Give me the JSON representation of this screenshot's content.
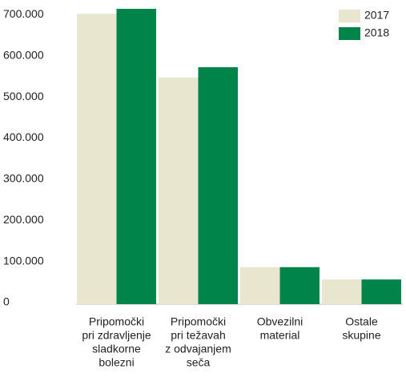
{
  "chart_data": {
    "type": "bar",
    "categories": [
      [
        "Pripomočki",
        "pri zdravljenje",
        "sladkorne",
        "bolezni"
      ],
      [
        "Pripomočki",
        "pri težavah",
        "z odvajanjem",
        "seča"
      ],
      [
        "Obvezilni",
        "material"
      ],
      [
        "Ostale",
        "skupine"
      ]
    ],
    "series": [
      {
        "name": "2017",
        "color": "#e8e6cf",
        "values": [
          706000,
          551000,
          90000,
          60000
        ]
      },
      {
        "name": "2018",
        "color": "#00844a",
        "values": [
          718000,
          576000,
          90000,
          60000
        ]
      }
    ],
    "ylim": [
      0,
      720000
    ],
    "yticks": [
      0,
      {
        "value": 100000,
        "label": "100.000"
      },
      {
        "value": 200000,
        "label": "200.000"
      },
      {
        "value": 300000,
        "label": "300.000"
      },
      {
        "value": 400000,
        "label": "400.000"
      },
      {
        "value": 500000,
        "label": "500.000"
      },
      {
        "value": 600000,
        "label": "600.000"
      },
      {
        "value": 700000,
        "label": "700.000"
      }
    ],
    "grid": false,
    "legend": "top-right"
  }
}
